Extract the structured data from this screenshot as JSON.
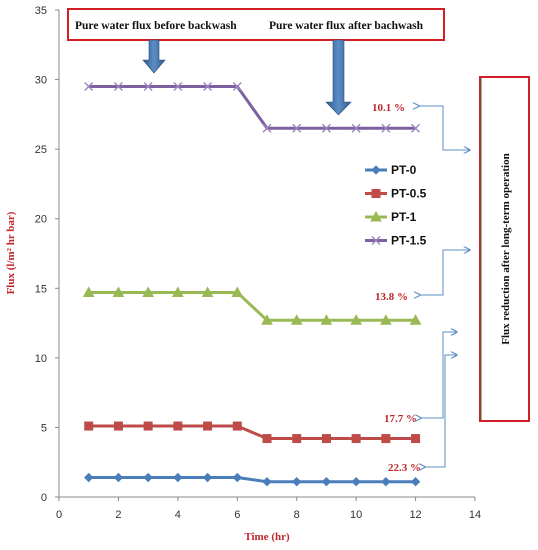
{
  "chart_data": {
    "type": "line",
    "xlabel": "Time (hr)",
    "ylabel": "Flux (l/m² hr bar)",
    "xlim": [
      0,
      14
    ],
    "ylim": [
      0,
      35
    ],
    "x_ticks": [
      0,
      2,
      4,
      6,
      8,
      10,
      12,
      14
    ],
    "y_ticks": [
      0,
      5,
      10,
      15,
      20,
      25,
      30,
      35
    ],
    "grid": false,
    "legend_position": "right",
    "x": [
      1,
      2,
      3,
      4,
      5,
      6,
      7,
      8,
      9,
      10,
      11,
      12
    ],
    "series": [
      {
        "name": "PT-0",
        "color": "#4a7ebb",
        "marker": "diamond",
        "values": [
          1.4,
          1.4,
          1.4,
          1.4,
          1.4,
          1.4,
          1.1,
          1.1,
          1.1,
          1.1,
          1.1,
          1.1
        ]
      },
      {
        "name": "PT-0.5",
        "color": "#be4b48",
        "marker": "square",
        "values": [
          5.1,
          5.1,
          5.1,
          5.1,
          5.1,
          5.1,
          4.2,
          4.2,
          4.2,
          4.2,
          4.2,
          4.2
        ]
      },
      {
        "name": "PT-1",
        "color": "#98b954",
        "marker": "triangle",
        "values": [
          14.7,
          14.7,
          14.7,
          14.7,
          14.7,
          14.7,
          12.7,
          12.7,
          12.7,
          12.7,
          12.7,
          12.7
        ]
      },
      {
        "name": "PT-1.5",
        "color": "#7d60a0",
        "marker": "x",
        "values": [
          29.5,
          29.5,
          29.5,
          29.5,
          29.5,
          29.5,
          26.5,
          26.5,
          26.5,
          26.5,
          26.5,
          26.5
        ]
      }
    ],
    "annotations": {
      "before_label": "Pure water flux before backwash",
      "after_label": "Pure water flux after bachwash",
      "side_label": "Flux reduction after long-term operation",
      "reductions": [
        "10.1 %",
        "13.8 %",
        "17.7 %",
        "22.3 %"
      ]
    }
  }
}
